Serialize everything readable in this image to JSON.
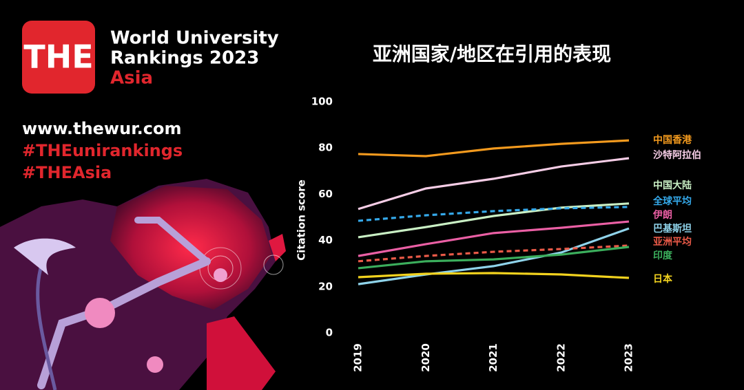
{
  "branding": {
    "logo": "THE",
    "title_line1": "World University",
    "title_line2": "Rankings 2023",
    "region": "Asia",
    "website": "www.thewur.com",
    "hashtag1": "#THEunirankings",
    "hashtag2": "#THEAsia"
  },
  "chart_data": {
    "type": "line",
    "title": "亚洲国家/地区在引用的表现",
    "y_label": "Citation score",
    "categories": [
      "2019",
      "2020",
      "2021",
      "2022",
      "2023"
    ],
    "ylim": [
      0,
      100
    ],
    "yticks": [
      0,
      20,
      40,
      60,
      80,
      100
    ],
    "series": [
      {
        "name": "中国香港",
        "color": "#f39a1e",
        "values": [
          77.4,
          76.5,
          79.8,
          81.8,
          83.3
        ]
      },
      {
        "name": "沙特阿拉伯",
        "color": "#f6cde6",
        "values": [
          53.6,
          62.5,
          66.7,
          72,
          75.6
        ]
      },
      {
        "name": "中国大陆",
        "color": "#c9efc4",
        "values": [
          41.4,
          45.8,
          50.6,
          54.2,
          56
        ]
      },
      {
        "name": "全球平均",
        "color": "#35a9ea",
        "dashed": true,
        "values": [
          48.5,
          50.9,
          52.7,
          53.9,
          54.5
        ]
      },
      {
        "name": "伊朗",
        "color": "#ea5fa4",
        "values": [
          33.3,
          38.4,
          43.2,
          45.5,
          48.2
        ]
      },
      {
        "name": "巴基斯坦",
        "color": "#8fd3ea",
        "values": [
          21.1,
          25.3,
          28.9,
          34.8,
          45.2
        ]
      },
      {
        "name": "亚洲平均",
        "color": "#ea5a48",
        "dashed": true,
        "values": [
          31,
          33.3,
          35.1,
          36.3,
          37.8
        ]
      },
      {
        "name": "印度",
        "color": "#3bae5c",
        "values": [
          28,
          31,
          31.8,
          33.9,
          37.2
        ]
      },
      {
        "name": "日本",
        "color": "#f2d21e",
        "values": [
          24.1,
          25.6,
          25.9,
          25.3,
          23.8
        ]
      }
    ]
  }
}
